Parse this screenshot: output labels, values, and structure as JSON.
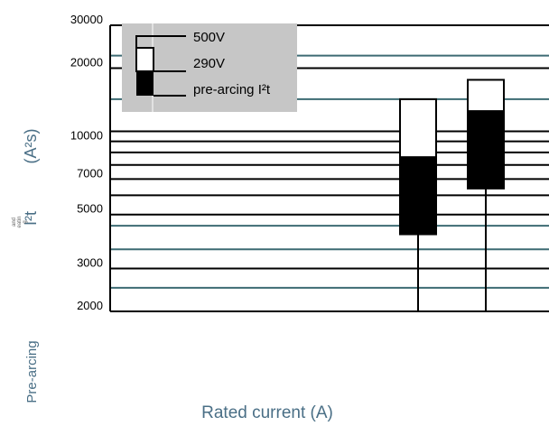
{
  "chart_data": {
    "type": "bar",
    "title": "",
    "xlabel": "Rated current (A)",
    "ylabel": "(A²s)",
    "ylabel_parts": [
      "Pre-arcing",
      "I²t",
      "(A²s)"
    ],
    "ylabel_small": [
      "and",
      "eatin",
      "g"
    ],
    "yscale": "log",
    "ylim": [
      2000,
      30000
    ],
    "yticks": [
      2000,
      3000,
      5000,
      7000,
      10000,
      20000,
      30000
    ],
    "ytick_labels": [
      "2000",
      "3000",
      "5000",
      "7000",
      "10000",
      "20000",
      "30000"
    ],
    "grid": true,
    "legend_position": "top-left",
    "legend": [
      "500V",
      "290V",
      "pre-arcing I²t"
    ],
    "bars": [
      {
        "index": 0,
        "values": {
          "500V": 14900,
          "290V": 8600,
          "pre-arcing I²t": 4150
        }
      },
      {
        "index": 1,
        "values": {
          "500V": 17900,
          "290V": 13300,
          "pre-arcing I²t": 6400
        }
      }
    ],
    "colors": {
      "dark_gridline": "#000000",
      "teal_gridline": "#3d6b73",
      "legend_bg": "#c6c6c6",
      "axis_title": "#4a6f86"
    }
  }
}
